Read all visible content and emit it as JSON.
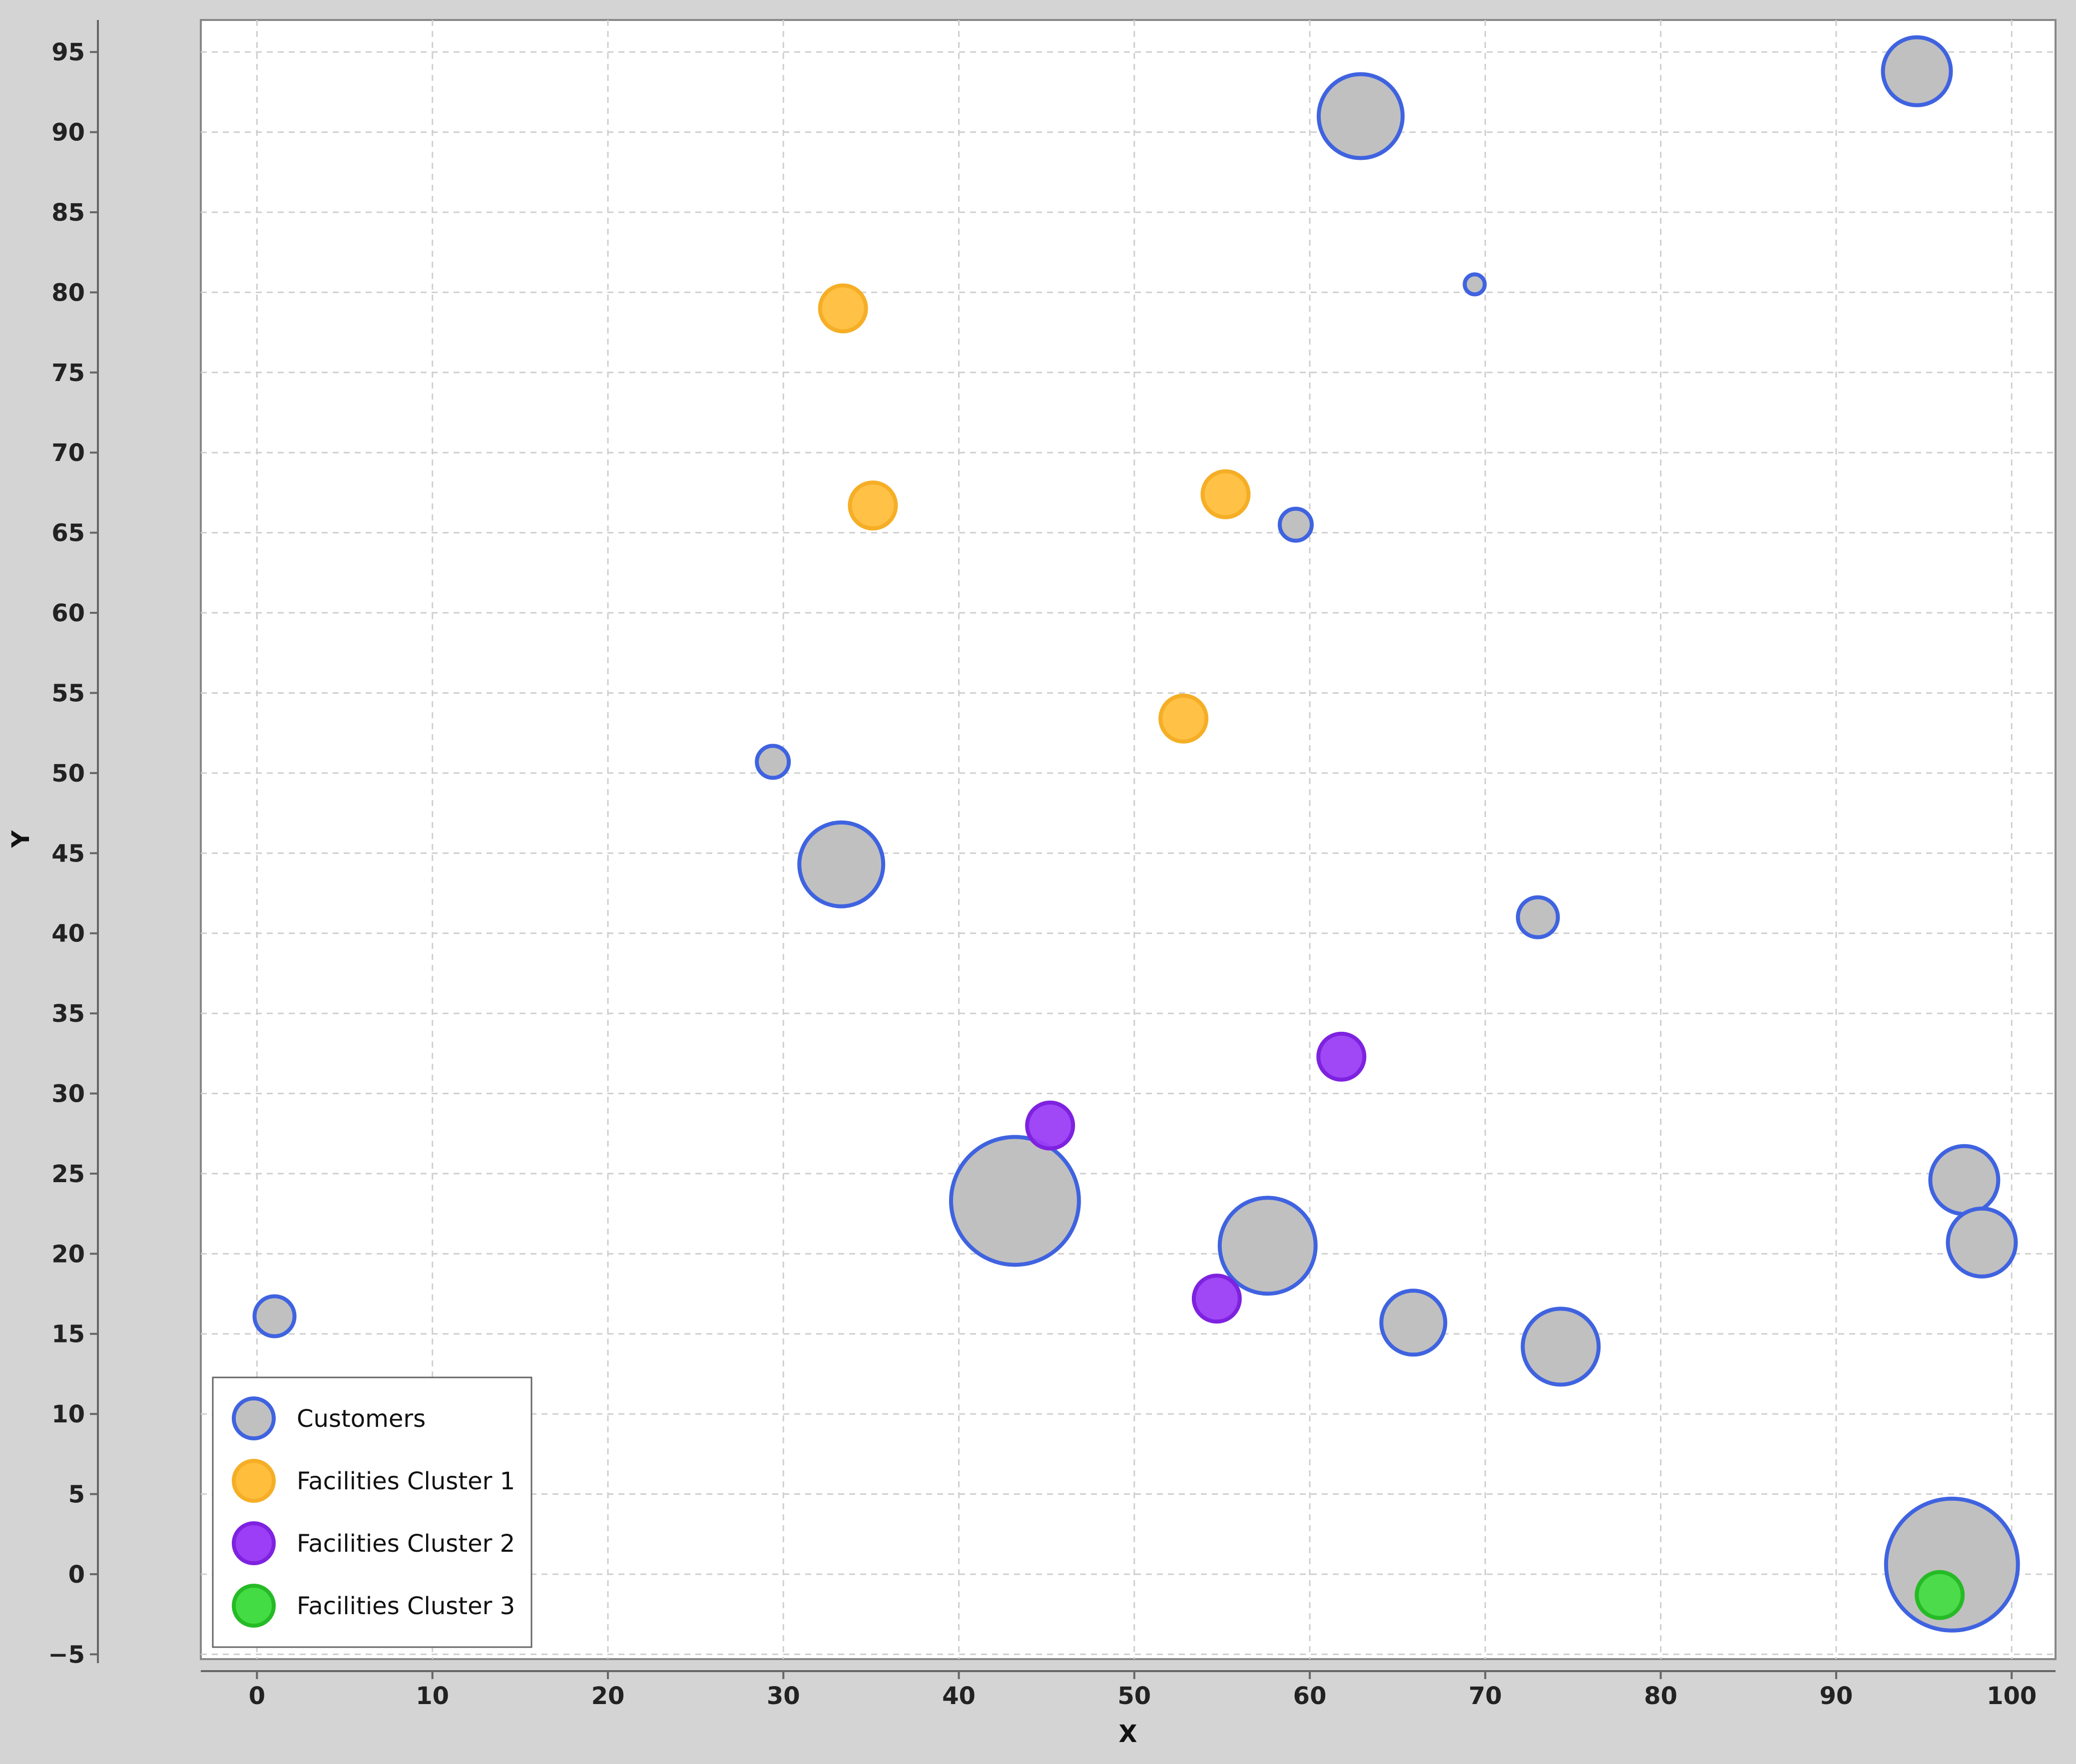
{
  "chart_data": {
    "type": "scatter",
    "xlabel": "X",
    "ylabel": "Y",
    "xlim": [
      -3.2,
      102.5
    ],
    "ylim": [
      -5.3,
      97
    ],
    "xticks": [
      0,
      10,
      20,
      30,
      40,
      50,
      60,
      70,
      80,
      90,
      100
    ],
    "yticks": [
      -5,
      0,
      5,
      10,
      15,
      20,
      25,
      30,
      35,
      40,
      45,
      50,
      55,
      60,
      65,
      70,
      75,
      80,
      85,
      90,
      95
    ],
    "grid": true,
    "legend_position": "bottom-left",
    "series": [
      {
        "name": "Customers",
        "fill": "#c0c0c0",
        "stroke": "#3f63e0",
        "points": [
          {
            "x": 1.0,
            "y": 16.1,
            "size": 1.0
          },
          {
            "x": 29.4,
            "y": 50.7,
            "size": 0.8
          },
          {
            "x": 33.3,
            "y": 44.3,
            "size": 2.1
          },
          {
            "x": 43.2,
            "y": 23.3,
            "size": 3.2
          },
          {
            "x": 57.6,
            "y": 20.5,
            "size": 2.4
          },
          {
            "x": 59.2,
            "y": 65.5,
            "size": 0.8
          },
          {
            "x": 62.9,
            "y": 91.0,
            "size": 2.1
          },
          {
            "x": 65.9,
            "y": 15.7,
            "size": 1.6
          },
          {
            "x": 69.4,
            "y": 80.5,
            "size": 0.5
          },
          {
            "x": 73.0,
            "y": 41.0,
            "size": 1.0
          },
          {
            "x": 74.3,
            "y": 14.2,
            "size": 1.9
          },
          {
            "x": 94.6,
            "y": 93.8,
            "size": 1.7
          },
          {
            "x": 97.3,
            "y": 24.6,
            "size": 1.7
          },
          {
            "x": 98.3,
            "y": 20.7,
            "size": 1.7
          },
          {
            "x": 96.6,
            "y": 0.6,
            "size": 3.3
          }
        ]
      },
      {
        "name": "Facilities Cluster 1",
        "fill": "#ffbe3c",
        "stroke": "#f5ae25",
        "points": [
          {
            "x": 33.4,
            "y": 79.0
          },
          {
            "x": 35.1,
            "y": 66.7
          },
          {
            "x": 55.2,
            "y": 67.4
          },
          {
            "x": 52.8,
            "y": 53.4
          }
        ]
      },
      {
        "name": "Facilities Cluster 2",
        "fill": "#9b3ef5",
        "stroke": "#7e22e0",
        "points": [
          {
            "x": 45.2,
            "y": 28.0
          },
          {
            "x": 61.8,
            "y": 32.3
          },
          {
            "x": 54.7,
            "y": 17.2
          }
        ]
      },
      {
        "name": "Facilities Cluster 3",
        "fill": "#44dc44",
        "stroke": "#26bb26",
        "points": [
          {
            "x": 95.9,
            "y": -1.3
          }
        ]
      }
    ]
  }
}
